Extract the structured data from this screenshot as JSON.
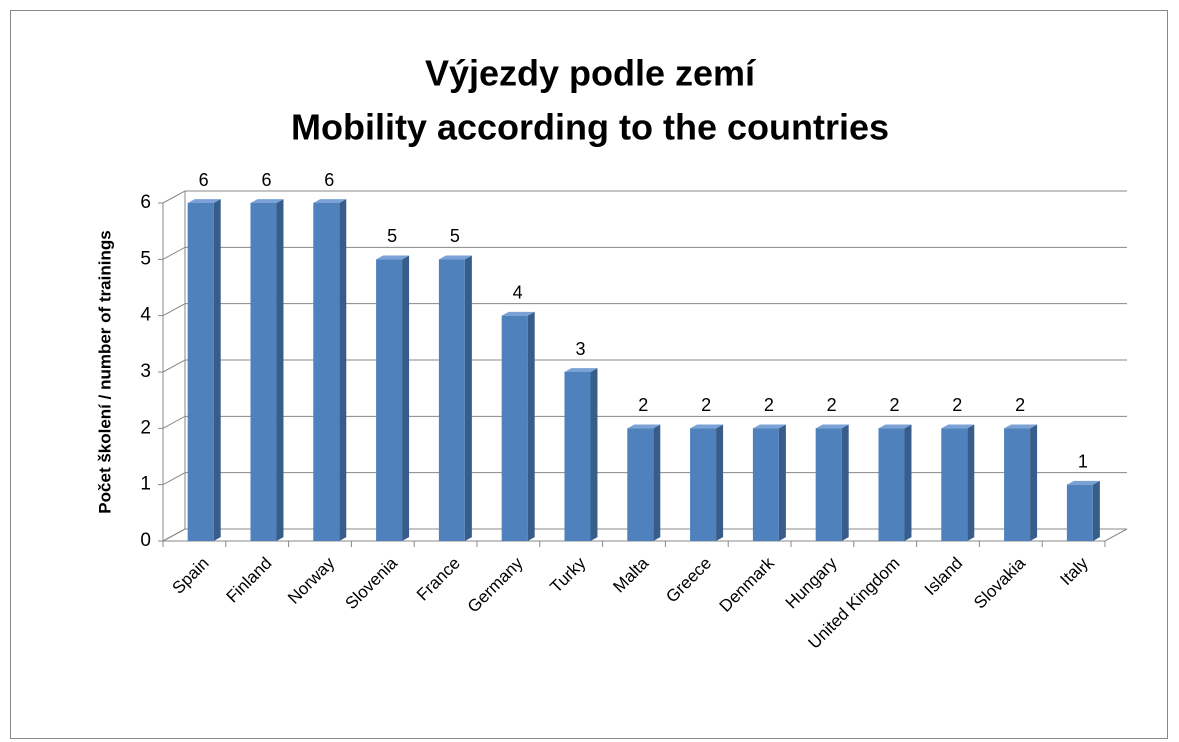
{
  "chart_data": {
    "type": "bar",
    "title": "Výjezdy podle zemí",
    "subtitle": "Mobility according to the countries",
    "y_label": "Počet školení / number of trainings",
    "categories": [
      "Spain",
      "Finland",
      "Norway",
      "Slovenia",
      "France",
      "Germany",
      "Turky",
      "Malta",
      "Greece",
      "Denmark",
      "Hungary",
      "United Kingdom",
      "Island",
      "Slovakia",
      "Italy"
    ],
    "values": [
      6,
      6,
      6,
      5,
      5,
      4,
      3,
      2,
      2,
      2,
      2,
      2,
      2,
      2,
      1
    ],
    "color": "#4f81bd",
    "ylim": [
      0,
      6
    ],
    "yticks": [
      0,
      1,
      2,
      3,
      4,
      5,
      6
    ],
    "grid": true
  }
}
